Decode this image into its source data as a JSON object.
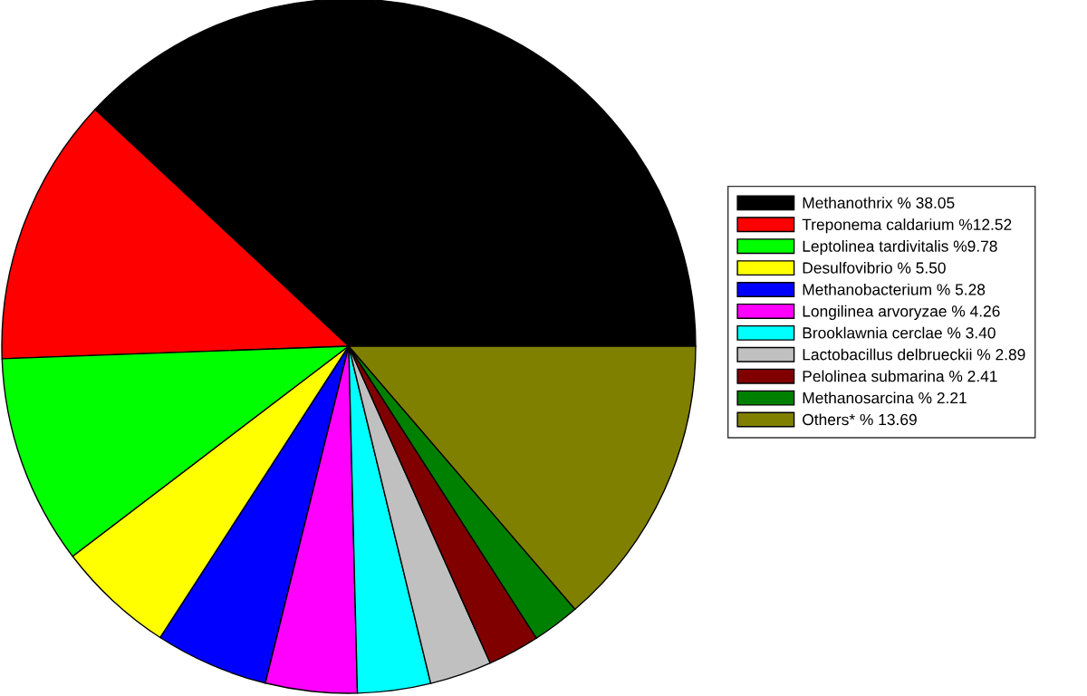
{
  "chart_data": {
    "type": "pie",
    "legend": "right",
    "categories": [
      "Methanothrix",
      "Treponema caldarium",
      "Leptolinea tardivitalis",
      "Desulfovibrio",
      "Methanobacterium",
      "Longilinea arvoryzae",
      "Brooklawnia cerclae",
      "Lactobacillus delbrueckii",
      "Pelolinea submarina",
      "Methanosarcina",
      "Others*"
    ],
    "values": [
      38.05,
      12.52,
      9.78,
      5.5,
      5.28,
      4.26,
      3.4,
      2.89,
      2.41,
      2.21,
      13.69
    ],
    "value_labels": [
      "% 38.05",
      "%12.52",
      "%9.78",
      "% 5.50",
      "% 5.28",
      "% 4.26",
      "% 3.40",
      "% 2.89",
      "% 2.41",
      "% 2.21",
      "% 13.69"
    ],
    "colors": [
      "#000000",
      "#ff0000",
      "#00ff00",
      "#ffff00",
      "#0000ff",
      "#ff00ff",
      "#00ffff",
      "#c0c0c0",
      "#800000",
      "#008000",
      "#808000"
    ]
  }
}
